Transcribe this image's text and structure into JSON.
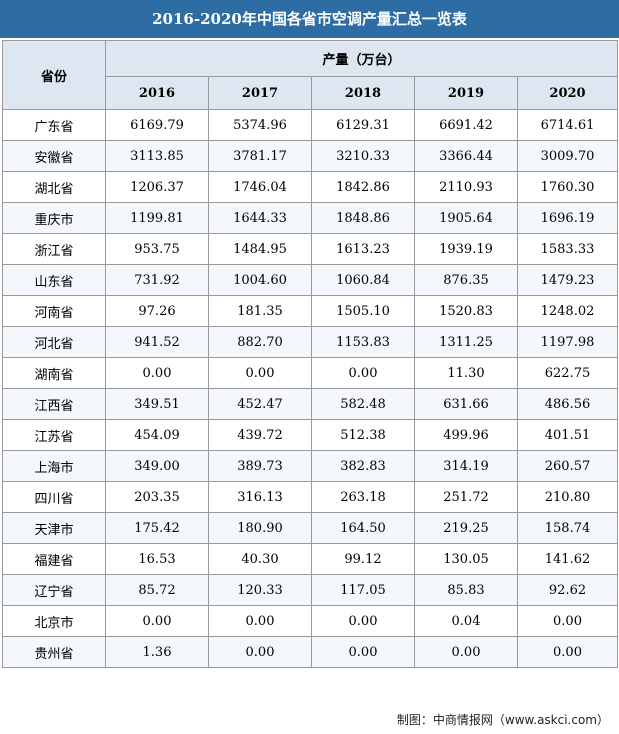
{
  "title": "2016-2020年中国各省市空调产量汇总一览表",
  "header": {
    "province": "省份",
    "unit": "产量（万台）",
    "years": [
      "2016",
      "2017",
      "2018",
      "2019",
      "2020"
    ]
  },
  "rows": [
    {
      "province": "广东省",
      "values": [
        "6169.79",
        "5374.96",
        "6129.31",
        "6691.42",
        "6714.61"
      ]
    },
    {
      "province": "安徽省",
      "values": [
        "3113.85",
        "3781.17",
        "3210.33",
        "3366.44",
        "3009.70"
      ]
    },
    {
      "province": "湖北省",
      "values": [
        "1206.37",
        "1746.04",
        "1842.86",
        "2110.93",
        "1760.30"
      ]
    },
    {
      "province": "重庆市",
      "values": [
        "1199.81",
        "1644.33",
        "1848.86",
        "1905.64",
        "1696.19"
      ]
    },
    {
      "province": "浙江省",
      "values": [
        "953.75",
        "1484.95",
        "1613.23",
        "1939.19",
        "1583.33"
      ]
    },
    {
      "province": "山东省",
      "values": [
        "731.92",
        "1004.60",
        "1060.84",
        "876.35",
        "1479.23"
      ]
    },
    {
      "province": "河南省",
      "values": [
        "97.26",
        "181.35",
        "1505.10",
        "1520.83",
        "1248.02"
      ]
    },
    {
      "province": "河北省",
      "values": [
        "941.52",
        "882.70",
        "1153.83",
        "1311.25",
        "1197.98"
      ]
    },
    {
      "province": "湖南省",
      "values": [
        "0.00",
        "0.00",
        "0.00",
        "11.30",
        "622.75"
      ]
    },
    {
      "province": "江西省",
      "values": [
        "349.51",
        "452.47",
        "582.48",
        "631.66",
        "486.56"
      ]
    },
    {
      "province": "江苏省",
      "values": [
        "454.09",
        "439.72",
        "512.38",
        "499.96",
        "401.51"
      ]
    },
    {
      "province": "上海市",
      "values": [
        "349.00",
        "389.73",
        "382.83",
        "314.19",
        "260.57"
      ]
    },
    {
      "province": "四川省",
      "values": [
        "203.35",
        "316.13",
        "263.18",
        "251.72",
        "210.80"
      ]
    },
    {
      "province": "天津市",
      "values": [
        "175.42",
        "180.90",
        "164.50",
        "219.25",
        "158.74"
      ]
    },
    {
      "province": "福建省",
      "values": [
        "16.53",
        "40.30",
        "99.12",
        "130.05",
        "141.62"
      ]
    },
    {
      "province": "辽宁省",
      "values": [
        "85.72",
        "120.33",
        "117.05",
        "85.83",
        "92.62"
      ]
    },
    {
      "province": "北京市",
      "values": [
        "0.00",
        "0.00",
        "0.00",
        "0.04",
        "0.00"
      ]
    },
    {
      "province": "贵州省",
      "values": [
        "1.36",
        "0.00",
        "0.00",
        "0.00",
        "0.00"
      ]
    }
  ],
  "footer": {
    "source": "制图：中商情报网（www.askci.com）"
  },
  "colors": {
    "title_bg": "#2e6da4",
    "header_bg": "#dde6f1",
    "border": "#9a9a9a"
  }
}
